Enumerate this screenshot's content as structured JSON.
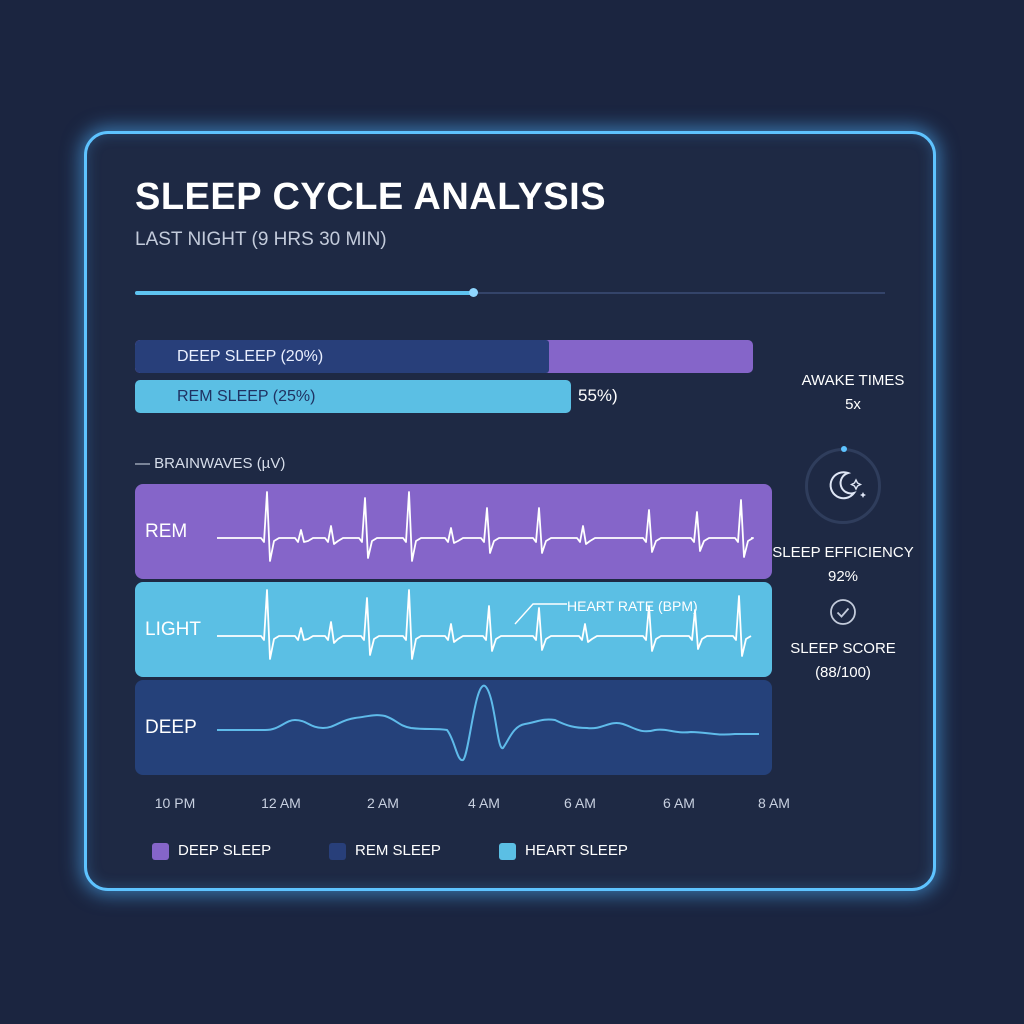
{
  "header": {
    "title": "SLEEP CYCLE ANALYSIS",
    "subtitle": "LAST NIGHT (9 HRS 30 MIN)"
  },
  "progress": {
    "fraction": 0.45
  },
  "stage_bars": {
    "deep_label": "DEEP SLEEP (20%)",
    "deep_fill_fraction": 0.67,
    "rem_label": "REM SLEEP (25%)",
    "remainder_label": "55%)"
  },
  "stats": {
    "awake_label": "AWAKE TIMES",
    "awake_value": "5x",
    "efficiency_label": "SLEEP EFFICIENCY",
    "efficiency_value": "92%",
    "score_label": "SLEEP SCORE",
    "score_value": "(88/100)"
  },
  "chart_data": {
    "type": "line",
    "title": "",
    "legend_title": "BRAINWAVES (µV)",
    "annotation": "HEART RATE (BPM)",
    "x_tick_labels": [
      "10 PM",
      "12 AM",
      "2 AM",
      "4 AM",
      "6 AM",
      "6 AM",
      "8 AM"
    ],
    "series": [
      {
        "name": "REM",
        "color": "#8565c9"
      },
      {
        "name": "LIGHT",
        "color": "#5bbfe4"
      },
      {
        "name": "DEEP",
        "color": "#25417a"
      }
    ]
  },
  "legend": [
    {
      "label": "DEEP SLEEP",
      "color": "#8565c9"
    },
    {
      "label": "REM SLEEP",
      "color": "#283f7a"
    },
    {
      "label": "HEART SLEEP",
      "color": "#5bbfe4"
    }
  ],
  "icons": {
    "moon": "moon-stars-icon",
    "check": "check-circle-icon"
  }
}
